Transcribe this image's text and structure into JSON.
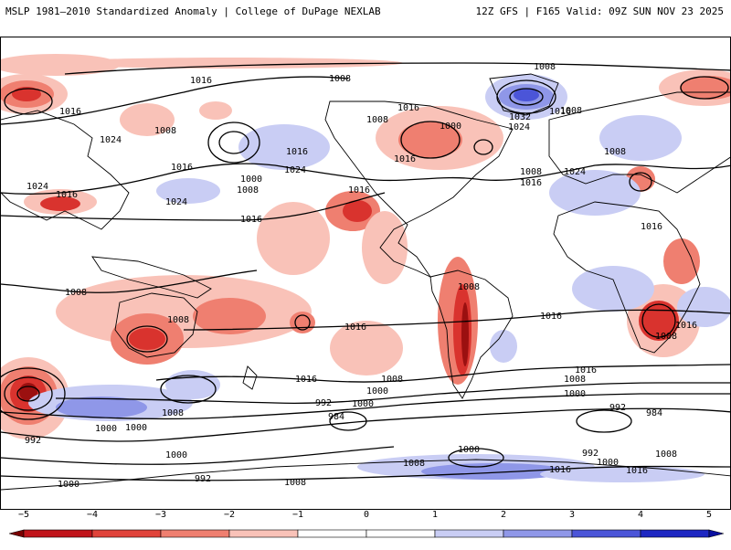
{
  "header": {
    "left_title": "MSLP 1981–2010 Standardized Anomaly | College of DuPage NEXLAB",
    "right_title": "12Z GFS | F165 Valid: 09Z SUN NOV 23 2025"
  },
  "map": {
    "isobar_labels": [
      "1016",
      "1008",
      "1008",
      "1016",
      "1024",
      "1008",
      "1016",
      "1024",
      "1016",
      "1016",
      "1024",
      "1016",
      "1000",
      "1008",
      "1008",
      "1016",
      "1024",
      "1016",
      "1016",
      "1008",
      "1008",
      "1008",
      "1016",
      "1016",
      "1016",
      "1016",
      "1008",
      "1016",
      "1016",
      "1008",
      "1000",
      "992",
      "1000",
      "1008",
      "984",
      "992",
      "1000",
      "1000",
      "992",
      "1000",
      "1008",
      "1000",
      "1008",
      "1016",
      "1008",
      "1000",
      "1000",
      "1008",
      "1016",
      "1032",
      "1024",
      "1024",
      "992",
      "984",
      "992",
      "1000",
      "1008",
      "1016",
      "1000",
      "1008",
      "1008",
      "1016"
    ],
    "colors": {
      "positive_anomaly_light": "#f9c2b8",
      "positive_anomaly_mid": "#ef7f70",
      "positive_anomaly_strong": "#d9332e",
      "positive_anomaly_extreme": "#9b1010",
      "negative_anomaly_light": "#c9cdf4",
      "negative_anomaly_mid": "#8f97e8",
      "negative_anomaly_strong": "#4b55d8"
    }
  },
  "colorbar": {
    "ticks": [
      "−5",
      "−4",
      "−3",
      "−2",
      "−1",
      "0",
      "1",
      "2",
      "3",
      "4",
      "5"
    ],
    "colors": [
      "#7a0000",
      "#c0141a",
      "#e0433a",
      "#ef7f70",
      "#f9c2b8",
      "#ffffff",
      "#ffffff",
      "#c9cdf4",
      "#8f97e8",
      "#4b55d8",
      "#1d27c2",
      "#0a10a0"
    ]
  }
}
